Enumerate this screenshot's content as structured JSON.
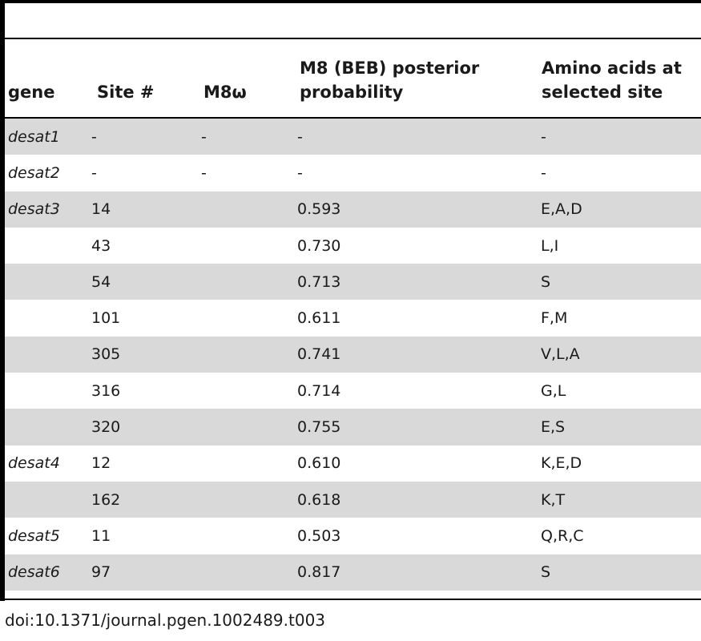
{
  "headers": {
    "gene": "gene",
    "site": "Site #",
    "omega": "M8ω",
    "prob_line1": "M8 (BEB) posterior",
    "prob_line2": "probability",
    "aa_line1": "Amino acids at",
    "aa_line2": "selected site"
  },
  "rows": [
    {
      "gene": "desat1",
      "site": "-",
      "omega": "-",
      "prob": "-",
      "aa": "-"
    },
    {
      "gene": "desat2",
      "site": "-",
      "omega": "-",
      "prob": "-",
      "aa": "-"
    },
    {
      "gene": "desat3",
      "site": "14",
      "omega": "",
      "prob": "0.593",
      "aa": "E,A,D"
    },
    {
      "gene": "",
      "site": "43",
      "omega": "",
      "prob": "0.730",
      "aa": "L,I"
    },
    {
      "gene": "",
      "site": "54",
      "omega": "",
      "prob": "0.713",
      "aa": "S"
    },
    {
      "gene": "",
      "site": "101",
      "omega": "",
      "prob": "0.611",
      "aa": "F,M"
    },
    {
      "gene": "",
      "site": "305",
      "omega": "",
      "prob": "0.741",
      "aa": "V,L,A"
    },
    {
      "gene": "",
      "site": "316",
      "omega": "",
      "prob": "0.714",
      "aa": "G,L"
    },
    {
      "gene": "",
      "site": "320",
      "omega": "",
      "prob": "0.755",
      "aa": "E,S"
    },
    {
      "gene": "desat4",
      "site": "12",
      "omega": "",
      "prob": "0.610",
      "aa": "K,E,D"
    },
    {
      "gene": "",
      "site": "162",
      "omega": "",
      "prob": "0.618",
      "aa": "K,T"
    },
    {
      "gene": "desat5",
      "site": "11",
      "omega": "",
      "prob": "0.503",
      "aa": "Q,R,C"
    },
    {
      "gene": "desat6",
      "site": "97",
      "omega": "",
      "prob": "0.817",
      "aa": "S"
    }
  ],
  "doi": "doi:10.1371/journal.pgen.1002489.t003"
}
